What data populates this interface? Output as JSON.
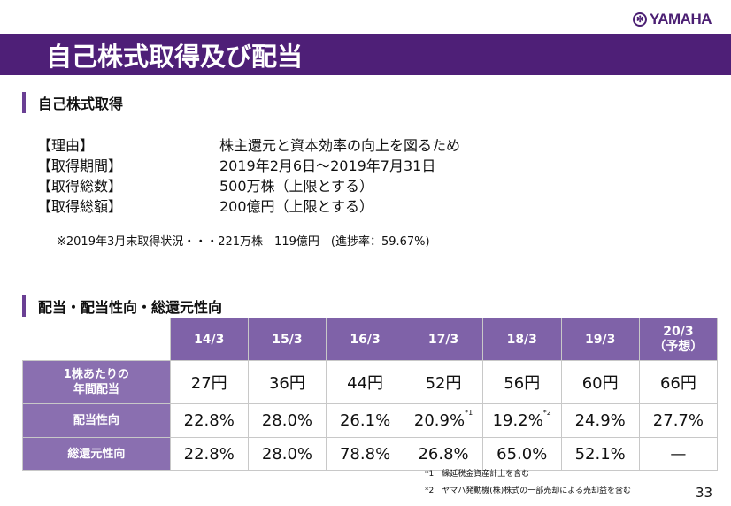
{
  "logo": "YAMAHA",
  "title": "自己株式取得及び配当",
  "section1": "自己株式取得",
  "info": [
    {
      "key": "【理由】",
      "value": "株主還元と資本効率の向上を図るため"
    },
    {
      "key": "【取得期間】",
      "value": "2019年2月6日～2019年7月31日"
    },
    {
      "key": "【取得総数】",
      "value": "500万株（上限とする）"
    },
    {
      "key": "【取得総額】",
      "value": "200億円（上限とする）"
    }
  ],
  "note": "※2019年3月末取得状況・・・221万株　119億円　(進捗率：59.67%)",
  "section2": "配当・配当性向・総還元性向",
  "table": {
    "headers": [
      "14/3",
      "15/3",
      "16/3",
      "17/3",
      "18/3",
      "19/3",
      "20/3\n（予想）"
    ],
    "rows": [
      {
        "label": "1株あたりの\n年間配当",
        "cells": [
          "27円",
          "36円",
          "44円",
          "52円",
          "56円",
          "60円",
          "66円"
        ]
      },
      {
        "label": "配当性向",
        "cells": [
          "22.8%",
          "28.0%",
          "26.1%",
          "20.9%",
          "19.2%",
          "24.9%",
          "27.7%"
        ]
      },
      {
        "label": "総還元性向",
        "cells": [
          "22.8%",
          "28.0%",
          "78.8%",
          "26.8%",
          "65.0%",
          "52.1%",
          "—"
        ]
      }
    ],
    "marks": {
      "m1": "*1",
      "m2": "*2"
    }
  },
  "footnotes": [
    "*1　繰延税金資産計上を含む",
    "*2　ヤマハ発動機(株)株式の一部売却による売却益を含む"
  ],
  "page": "33"
}
